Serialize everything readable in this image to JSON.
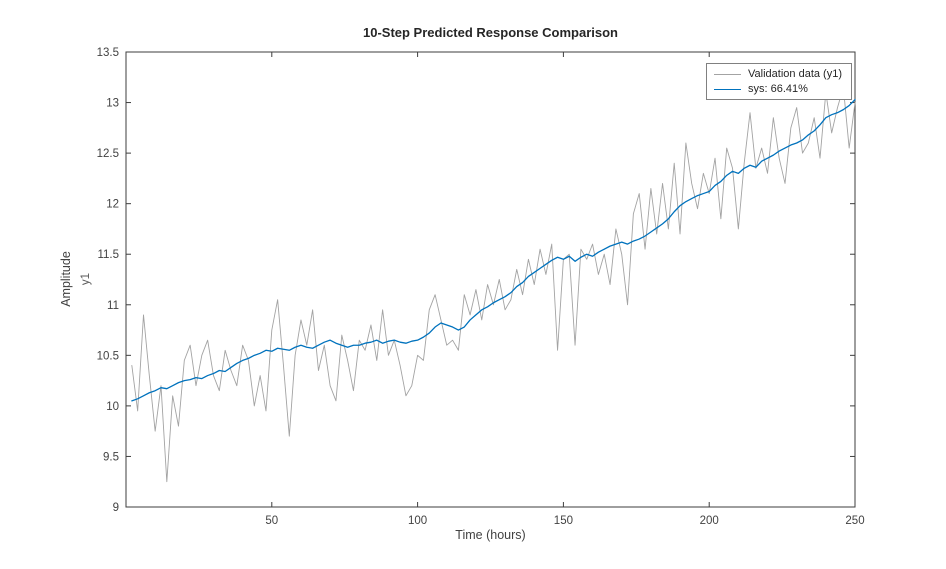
{
  "chart": {
    "title": "10-Step Predicted Response Comparison",
    "xlabel": "Time (hours)",
    "ylabel": "Amplitude",
    "ylabel_sub": "y1"
  },
  "chart_data": {
    "type": "line",
    "title": "10-Step Predicted Response Comparison",
    "xlabel": "Time (hours)",
    "ylabel": "Amplitude (y1)",
    "xlim": [
      0,
      250
    ],
    "ylim": [
      9,
      13.5
    ],
    "xticks": [
      50,
      100,
      150,
      200,
      250
    ],
    "yticks": [
      9,
      9.5,
      10,
      10.5,
      11,
      11.5,
      12,
      12.5,
      13,
      13.5
    ],
    "grid": false,
    "legend_position": "top-right",
    "x": [
      2,
      4,
      6,
      8,
      10,
      12,
      14,
      16,
      18,
      20,
      22,
      24,
      26,
      28,
      30,
      32,
      34,
      36,
      38,
      40,
      42,
      44,
      46,
      48,
      50,
      52,
      54,
      56,
      58,
      60,
      62,
      64,
      66,
      68,
      70,
      72,
      74,
      76,
      78,
      80,
      82,
      84,
      86,
      88,
      90,
      92,
      94,
      96,
      98,
      100,
      102,
      104,
      106,
      108,
      110,
      112,
      114,
      116,
      118,
      120,
      122,
      124,
      126,
      128,
      130,
      132,
      134,
      136,
      138,
      140,
      142,
      144,
      146,
      148,
      150,
      152,
      154,
      156,
      158,
      160,
      162,
      164,
      166,
      168,
      170,
      172,
      174,
      176,
      178,
      180,
      182,
      184,
      186,
      188,
      190,
      192,
      194,
      196,
      198,
      200,
      202,
      204,
      206,
      208,
      210,
      212,
      214,
      216,
      218,
      220,
      222,
      224,
      226,
      228,
      230,
      232,
      234,
      236,
      238,
      240,
      242,
      244,
      246,
      248,
      250
    ],
    "series": [
      {
        "name": "Validation data (y1)",
        "color": "#a3a3a3",
        "width": 0.9,
        "values": [
          10.4,
          9.95,
          10.9,
          10.3,
          9.75,
          10.2,
          9.25,
          10.1,
          9.8,
          10.45,
          10.6,
          10.2,
          10.5,
          10.65,
          10.3,
          10.15,
          10.55,
          10.35,
          10.2,
          10.6,
          10.45,
          10.0,
          10.3,
          9.95,
          10.75,
          11.05,
          10.4,
          9.7,
          10.5,
          10.85,
          10.6,
          10.95,
          10.35,
          10.6,
          10.2,
          10.05,
          10.7,
          10.45,
          10.15,
          10.65,
          10.55,
          10.8,
          10.45,
          10.95,
          10.5,
          10.65,
          10.4,
          10.1,
          10.2,
          10.5,
          10.45,
          10.95,
          11.1,
          10.85,
          10.6,
          10.65,
          10.55,
          11.1,
          10.9,
          11.15,
          10.85,
          11.2,
          11.0,
          11.25,
          10.95,
          11.05,
          11.35,
          11.1,
          11.45,
          11.2,
          11.55,
          11.3,
          11.6,
          10.55,
          11.45,
          11.5,
          10.6,
          11.55,
          11.45,
          11.6,
          11.3,
          11.5,
          11.2,
          11.75,
          11.5,
          11.0,
          11.9,
          12.1,
          11.55,
          12.15,
          11.7,
          12.2,
          11.75,
          12.4,
          11.7,
          12.6,
          12.2,
          11.95,
          12.3,
          12.1,
          12.45,
          11.85,
          12.55,
          12.35,
          11.75,
          12.4,
          12.9,
          12.35,
          12.55,
          12.3,
          12.85,
          12.45,
          12.2,
          12.75,
          12.95,
          12.5,
          12.6,
          12.85,
          12.45,
          13.1,
          12.7,
          12.95,
          13.15,
          12.55,
          13.0
        ]
      },
      {
        "name": "sys: 66.41%",
        "color": "#0072BD",
        "width": 1.3,
        "values": [
          10.05,
          10.07,
          10.1,
          10.13,
          10.15,
          10.18,
          10.17,
          10.2,
          10.23,
          10.25,
          10.26,
          10.28,
          10.27,
          10.3,
          10.32,
          10.35,
          10.34,
          10.38,
          10.42,
          10.45,
          10.47,
          10.5,
          10.52,
          10.55,
          10.54,
          10.57,
          10.56,
          10.55,
          10.58,
          10.6,
          10.58,
          10.57,
          10.6,
          10.63,
          10.65,
          10.62,
          10.6,
          10.58,
          10.6,
          10.6,
          10.62,
          10.63,
          10.65,
          10.62,
          10.64,
          10.65,
          10.63,
          10.62,
          10.64,
          10.65,
          10.68,
          10.72,
          10.78,
          10.82,
          10.8,
          10.78,
          10.75,
          10.78,
          10.85,
          10.9,
          10.95,
          10.98,
          11.02,
          11.05,
          11.08,
          11.12,
          11.18,
          11.22,
          11.28,
          11.32,
          11.36,
          11.4,
          11.44,
          11.47,
          11.45,
          11.48,
          11.43,
          11.47,
          11.5,
          11.48,
          11.52,
          11.55,
          11.58,
          11.6,
          11.62,
          11.6,
          11.63,
          11.65,
          11.68,
          11.72,
          11.76,
          11.8,
          11.85,
          11.92,
          11.98,
          12.02,
          12.05,
          12.08,
          12.1,
          12.12,
          12.18,
          12.22,
          12.28,
          12.32,
          12.3,
          12.35,
          12.38,
          12.36,
          12.42,
          12.45,
          12.48,
          12.52,
          12.55,
          12.58,
          12.6,
          12.63,
          12.68,
          12.72,
          12.78,
          12.85,
          12.88,
          12.9,
          12.93,
          12.97,
          13.03
        ]
      }
    ]
  }
}
